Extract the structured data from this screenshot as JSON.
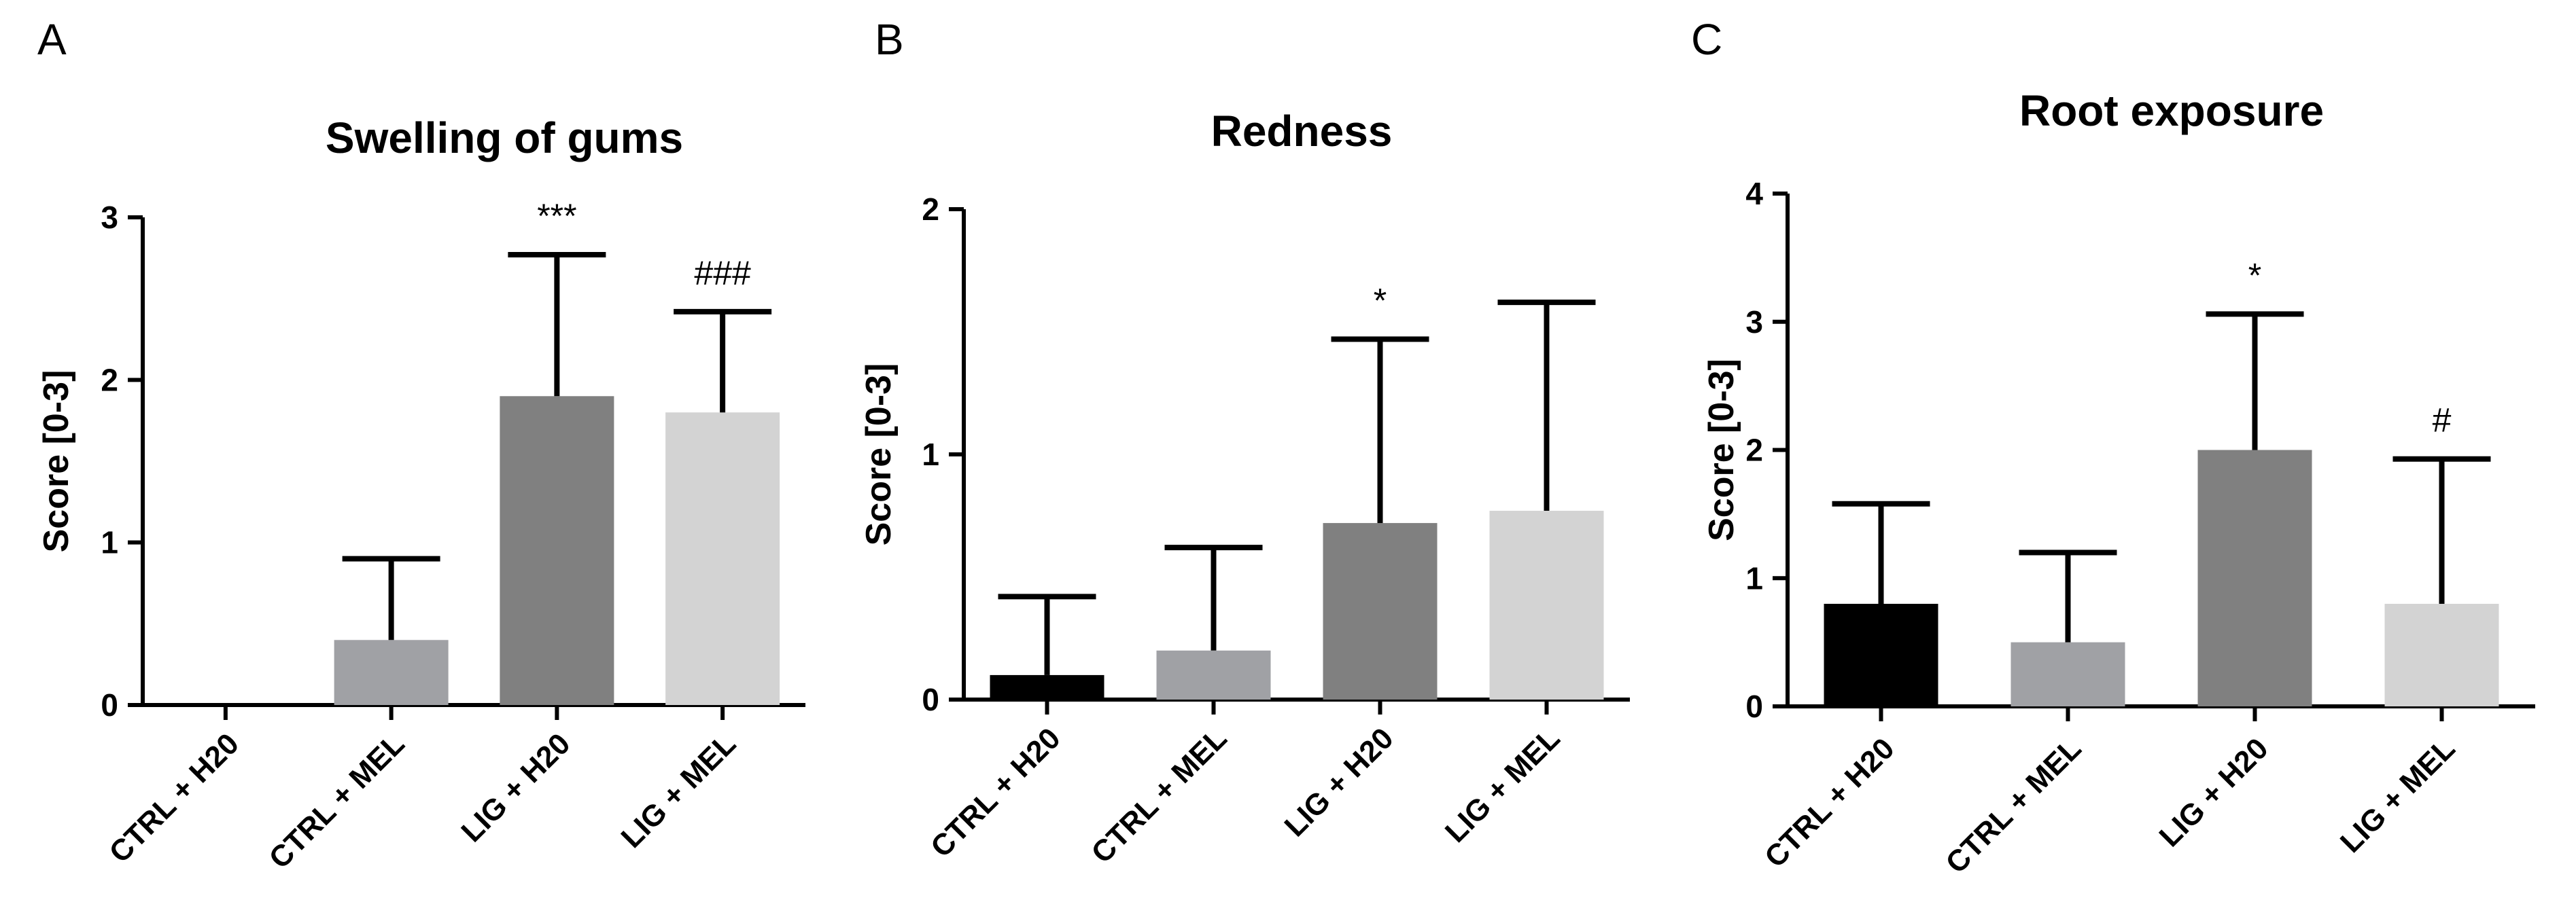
{
  "chart_data": [
    {
      "panel": "A",
      "type": "bar",
      "title": "Swelling of gums",
      "xlabel": "",
      "ylabel": "Score [0-3]",
      "ylim": [
        0,
        3
      ],
      "yticks": [
        "0",
        "1",
        "2",
        "3"
      ],
      "categories": [
        "CTRL + H20",
        "CTRL + MEL",
        "LIG + H20",
        "LIG + MEL"
      ],
      "values": [
        0,
        0.4,
        1.9,
        1.8
      ],
      "errors": [
        0,
        0.5,
        0.87,
        0.62
      ],
      "colors": [
        "#000000",
        "#a0a1a5",
        "#808080",
        "#d3d3d3"
      ],
      "annotations": [
        "",
        "",
        "***",
        "###"
      ],
      "grid": false,
      "legend": "none"
    },
    {
      "panel": "B",
      "type": "bar",
      "title": "Redness",
      "xlabel": "",
      "ylabel": "Score [0-3]",
      "ylim": [
        0,
        2
      ],
      "yticks": [
        "0",
        "1",
        "2"
      ],
      "categories": [
        "CTRL + H20",
        "CTRL + MEL",
        "LIG + H20",
        "LIG + MEL"
      ],
      "values": [
        0.1,
        0.2,
        0.72,
        0.77
      ],
      "errors": [
        0.32,
        0.42,
        0.75,
        0.85
      ],
      "colors": [
        "#000000",
        "#a0a1a5",
        "#808080",
        "#d3d3d3"
      ],
      "annotations": [
        "",
        "",
        "*",
        ""
      ],
      "grid": false,
      "legend": "none"
    },
    {
      "panel": "C",
      "type": "bar",
      "title": "Root exposure",
      "xlabel": "",
      "ylabel": "Score [0-3]",
      "ylim": [
        0,
        4
      ],
      "yticks": [
        "0",
        "1",
        "2",
        "3",
        "4"
      ],
      "categories": [
        "CTRL + H20",
        "CTRL + MEL",
        "LIG + H20",
        "LIG + MEL"
      ],
      "values": [
        0.8,
        0.5,
        2.0,
        0.8
      ],
      "errors": [
        0.78,
        0.7,
        1.06,
        1.13
      ],
      "colors": [
        "#000000",
        "#a0a1a5",
        "#808080",
        "#d3d3d3"
      ],
      "annotations": [
        "",
        "",
        "*",
        "#"
      ],
      "grid": false,
      "legend": "none"
    }
  ]
}
